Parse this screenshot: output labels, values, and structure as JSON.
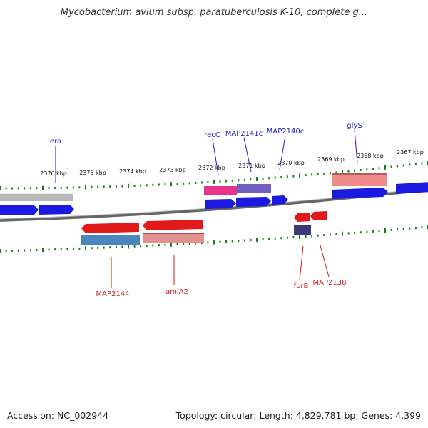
{
  "title": "Mycobacterium avium subsp. paratuberculosis K-10, complete g...",
  "footer": {
    "accession": "Accession: NC_002944",
    "summary": "Topology: circular; Length: 4,829,781 bp; Genes: 4,399"
  },
  "ruler_labels": [
    "2376 kbp",
    "2375 kbp",
    "2374 kbp",
    "2373 kbp",
    "2372 kbp",
    "2371 kbp",
    "2370 kbp",
    "2369 kbp",
    "2368 kbp",
    "2367 kbp"
  ],
  "gene_labels": {
    "era": "era",
    "recO": "recO",
    "map2141c": "MAP2141c",
    "map2140c": "MAP2140c",
    "glyS": "glyS",
    "map2144": "MAP2144",
    "amiA2": "amiA2",
    "furB": "furB",
    "map2138": "MAP2138"
  },
  "colors": {
    "backbone": "#777777",
    "tick": "#1a7a1a",
    "forward_cds": "#1a1ae0",
    "reverse_cds": "#e01a1a",
    "label_forward": "#1a1acc",
    "label_reverse": "#cc1a1a",
    "gene_grey": "#b8b8b8",
    "hl_magenta": "#e8338a",
    "hl_purple": "#7060c0",
    "hl_salmon": "#f08a8a",
    "hl_steel": "#4a86c0",
    "hl_rose": "#e39090",
    "hl_indigo": "#3e3a7a"
  }
}
